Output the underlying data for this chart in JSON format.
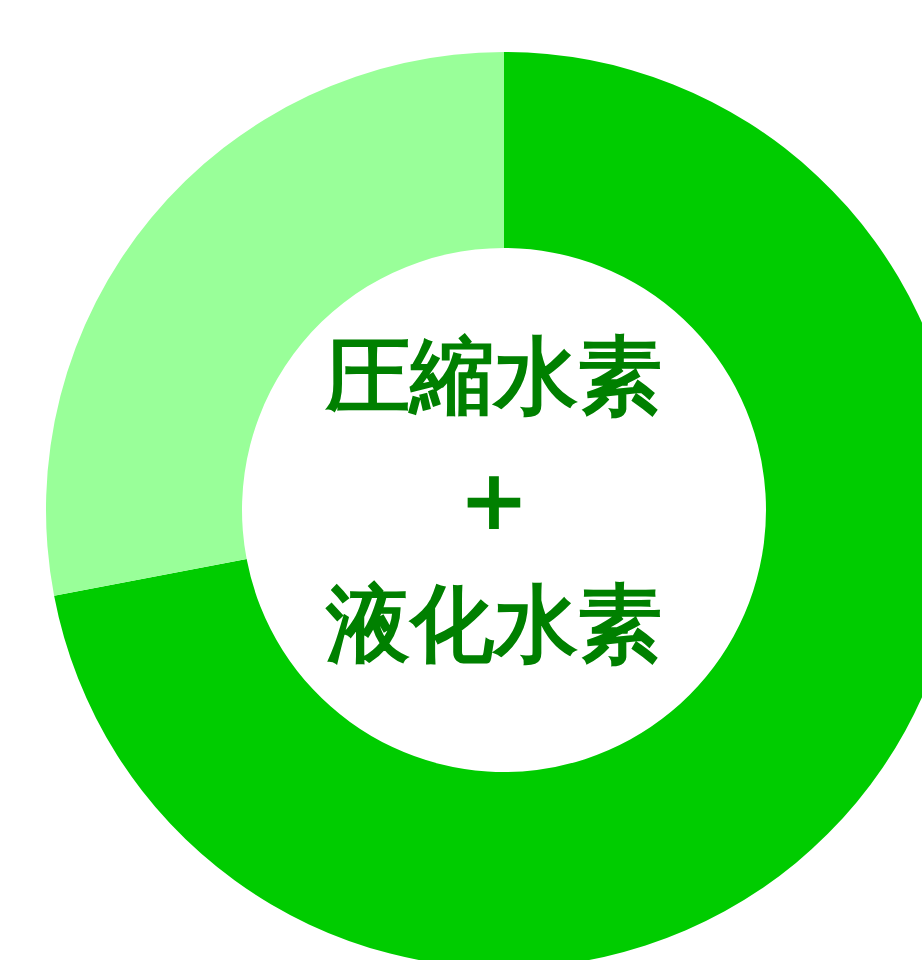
{
  "chart_data": {
    "type": "donut",
    "categories": [
      null,
      null
    ],
    "values": [
      72,
      28
    ],
    "colors": [
      "#00cc00",
      "#99ff99"
    ],
    "annotations": [
      "圧縮水素",
      "+",
      "液化水素"
    ]
  }
}
